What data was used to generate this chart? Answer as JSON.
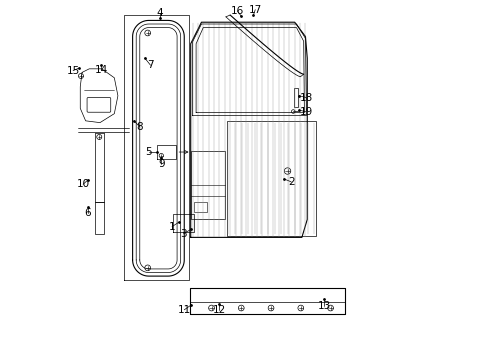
{
  "bg_color": "#ffffff",
  "line_color": "#000000",
  "gray_color": "#888888",
  "figsize": [
    4.89,
    3.6
  ],
  "dpi": 100,
  "label_fs": 7.5,
  "callouts": [
    [
      1,
      0.328,
      0.388,
      0.308,
      0.372
    ],
    [
      2,
      0.595,
      0.518,
      0.618,
      0.51
    ],
    [
      3,
      0.34,
      0.362,
      0.322,
      0.353
    ],
    [
      4,
      0.272,
      0.948,
      0.272,
      0.94
    ],
    [
      5,
      0.278,
      0.57,
      0.258,
      0.57
    ],
    [
      6,
      0.098,
      0.228,
      0.098,
      0.212
    ],
    [
      7,
      0.218,
      0.82,
      0.23,
      0.8
    ],
    [
      8,
      0.188,
      0.668,
      0.2,
      0.65
    ],
    [
      9,
      0.3,
      0.555,
      0.3,
      0.542
    ],
    [
      10,
      0.098,
      0.41,
      0.08,
      0.398
    ],
    [
      11,
      0.39,
      0.162,
      0.372,
      0.148
    ],
    [
      12,
      0.462,
      0.17,
      0.462,
      0.155
    ],
    [
      13,
      0.715,
      0.148,
      0.715,
      0.132
    ],
    [
      14,
      0.118,
      0.818,
      0.118,
      0.808
    ],
    [
      15,
      0.042,
      0.818,
      0.038,
      0.808
    ],
    [
      16,
      0.518,
      0.938,
      0.508,
      0.925
    ],
    [
      17,
      0.555,
      0.94,
      0.558,
      0.928
    ],
    [
      18,
      0.648,
      0.728,
      0.665,
      0.722
    ],
    [
      19,
      0.648,
      0.695,
      0.668,
      0.69
    ]
  ]
}
